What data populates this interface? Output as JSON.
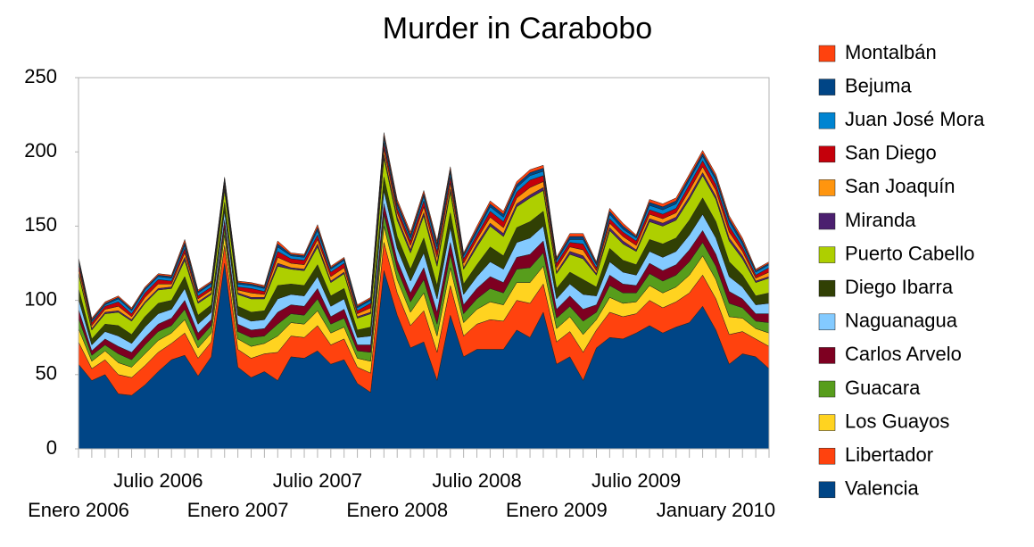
{
  "chart_data": {
    "type": "stacked_area",
    "title": "Murder in Carabobo",
    "categories": [
      "Enero 2006",
      null,
      null,
      null,
      null,
      null,
      "Julio 2006",
      null,
      null,
      null,
      null,
      null,
      "Enero 2007",
      null,
      null,
      null,
      null,
      null,
      "Julio 2007",
      null,
      null,
      null,
      null,
      null,
      "Enero 2008",
      null,
      null,
      null,
      null,
      null,
      "Julio 2008",
      null,
      null,
      null,
      null,
      null,
      "Enero 2009",
      null,
      null,
      null,
      null,
      null,
      "Julio 2009",
      null,
      null,
      null,
      null,
      null,
      "January 2010",
      null,
      null,
      null,
      null
    ],
    "ylim": [
      0,
      250
    ],
    "yticks": [
      0,
      50,
      100,
      150,
      200,
      250
    ],
    "grid": false,
    "series": [
      {
        "name": "Valencia",
        "color": "#004586",
        "values": [
          57,
          46,
          50,
          37,
          36,
          43,
          52,
          60,
          63,
          49,
          62,
          125,
          55,
          48,
          52,
          46,
          62,
          61,
          66,
          57,
          60,
          44,
          38,
          120,
          90,
          68,
          72,
          46,
          90,
          62,
          67,
          67,
          67,
          80,
          75,
          92,
          57,
          62,
          46,
          68,
          75,
          74,
          78,
          83,
          78,
          82,
          85,
          96,
          80,
          57,
          64,
          62,
          54
        ]
      },
      {
        "name": "Libertador",
        "color": "#ff420e",
        "values": [
          15,
          8,
          10,
          13,
          12,
          13,
          13,
          11,
          15,
          12,
          10,
          12,
          12,
          13,
          12,
          19,
          14,
          14,
          17,
          13,
          14,
          11,
          13,
          19,
          15,
          15,
          21,
          19,
          20,
          14,
          17,
          20,
          19,
          20,
          23,
          19,
          15,
          17,
          19,
          12,
          17,
          15,
          13,
          17,
          17,
          17,
          20,
          21,
          21,
          20,
          15,
          12,
          15
        ]
      },
      {
        "name": "Los Guayos",
        "color": "#ffd320",
        "values": [
          9,
          5,
          6,
          8,
          7,
          8,
          8,
          7,
          9,
          7,
          6,
          7,
          7,
          8,
          7,
          11,
          9,
          9,
          10,
          8,
          8,
          6,
          8,
          11,
          9,
          9,
          12,
          11,
          12,
          9,
          10,
          12,
          11,
          12,
          14,
          12,
          9,
          10,
          12,
          7,
          10,
          9,
          8,
          10,
          10,
          10,
          12,
          13,
          13,
          12,
          9,
          7,
          9
        ]
      },
      {
        "name": "Guacara",
        "color": "#579d1c",
        "values": [
          7,
          4,
          4,
          6,
          5,
          6,
          6,
          5,
          7,
          5,
          5,
          5,
          5,
          6,
          5,
          8,
          6,
          6,
          8,
          6,
          6,
          5,
          6,
          8,
          7,
          7,
          9,
          8,
          9,
          6,
          7,
          9,
          8,
          9,
          10,
          9,
          7,
          7,
          9,
          5,
          8,
          7,
          6,
          8,
          8,
          8,
          9,
          9,
          9,
          9,
          7,
          5,
          7
        ]
      },
      {
        "name": "Carlos Arvelo",
        "color": "#7e0021",
        "values": [
          6,
          3,
          4,
          5,
          5,
          5,
          5,
          5,
          6,
          5,
          4,
          5,
          5,
          5,
          5,
          8,
          6,
          6,
          7,
          5,
          6,
          4,
          5,
          7,
          6,
          6,
          8,
          8,
          8,
          6,
          7,
          8,
          7,
          8,
          9,
          8,
          6,
          7,
          8,
          5,
          7,
          6,
          5,
          7,
          7,
          7,
          8,
          8,
          8,
          8,
          6,
          5,
          6
        ]
      },
      {
        "name": "Naguanagua",
        "color": "#83caff",
        "values": [
          7,
          4,
          5,
          7,
          6,
          7,
          7,
          6,
          8,
          6,
          5,
          6,
          6,
          6,
          6,
          9,
          7,
          7,
          8,
          7,
          7,
          5,
          6,
          9,
          8,
          8,
          10,
          9,
          10,
          7,
          8,
          10,
          9,
          10,
          11,
          10,
          7,
          8,
          10,
          6,
          9,
          8,
          7,
          8,
          9,
          9,
          10,
          11,
          11,
          10,
          8,
          6,
          7
        ]
      },
      {
        "name": "Diego Ibarra",
        "color": "#314004",
        "values": [
          7,
          4,
          5,
          7,
          6,
          7,
          7,
          6,
          8,
          6,
          5,
          6,
          6,
          6,
          6,
          9,
          7,
          7,
          8,
          7,
          7,
          5,
          6,
          9,
          8,
          8,
          10,
          9,
          10,
          7,
          8,
          10,
          9,
          10,
          11,
          10,
          7,
          8,
          10,
          6,
          9,
          8,
          7,
          8,
          9,
          9,
          10,
          11,
          11,
          10,
          8,
          6,
          7
        ]
      },
      {
        "name": "Puerto Cabello",
        "color": "#aecf00",
        "values": [
          10,
          6,
          7,
          9,
          9,
          9,
          9,
          8,
          11,
          8,
          7,
          8,
          8,
          9,
          8,
          13,
          10,
          10,
          12,
          9,
          10,
          8,
          9,
          13,
          11,
          11,
          15,
          13,
          14,
          10,
          12,
          14,
          13,
          14,
          16,
          14,
          10,
          12,
          14,
          8,
          12,
          11,
          9,
          12,
          12,
          12,
          14,
          15,
          15,
          14,
          11,
          9,
          10
        ]
      },
      {
        "name": "Miranda",
        "color": "#4b1f6f",
        "values": [
          1,
          1,
          1,
          1,
          1,
          1,
          1,
          1,
          2,
          1,
          1,
          1,
          1,
          1,
          1,
          2,
          1,
          1,
          2,
          1,
          1,
          1,
          1,
          2,
          2,
          2,
          2,
          2,
          2,
          1,
          2,
          2,
          2,
          2,
          2,
          2,
          1,
          2,
          2,
          1,
          2,
          2,
          1,
          2,
          2,
          2,
          2,
          2,
          2,
          2,
          2,
          1,
          1
        ]
      },
      {
        "name": "San Joaquín",
        "color": "#ff950e",
        "values": [
          3,
          2,
          2,
          3,
          2,
          3,
          3,
          2,
          3,
          2,
          2,
          2,
          2,
          3,
          2,
          4,
          3,
          3,
          3,
          3,
          3,
          2,
          3,
          4,
          3,
          3,
          4,
          4,
          4,
          3,
          3,
          4,
          4,
          4,
          5,
          4,
          3,
          3,
          4,
          2,
          3,
          3,
          3,
          3,
          3,
          3,
          4,
          4,
          4,
          4,
          3,
          2,
          3
        ]
      },
      {
        "name": "San Diego",
        "color": "#c5000b",
        "values": [
          3,
          2,
          2,
          3,
          2,
          3,
          3,
          2,
          3,
          2,
          2,
          2,
          2,
          3,
          2,
          4,
          3,
          3,
          3,
          3,
          3,
          2,
          3,
          4,
          3,
          3,
          4,
          4,
          4,
          3,
          3,
          4,
          4,
          4,
          5,
          4,
          3,
          3,
          4,
          2,
          3,
          3,
          3,
          3,
          3,
          3,
          4,
          4,
          4,
          4,
          3,
          2,
          3
        ]
      },
      {
        "name": "Juan José Mora",
        "color": "#0084d1",
        "values": [
          2,
          1,
          1,
          2,
          2,
          2,
          2,
          2,
          2,
          2,
          2,
          2,
          2,
          2,
          2,
          3,
          2,
          2,
          3,
          2,
          2,
          2,
          2,
          3,
          2,
          2,
          3,
          3,
          3,
          2,
          2,
          3,
          3,
          3,
          3,
          3,
          2,
          2,
          3,
          2,
          3,
          2,
          2,
          3,
          3,
          3,
          3,
          3,
          3,
          3,
          2,
          2,
          2
        ]
      },
      {
        "name": "Bejuma",
        "color": "#004586",
        "values": [
          1,
          1,
          1,
          1,
          1,
          1,
          1,
          1,
          2,
          1,
          1,
          1,
          1,
          1,
          1,
          2,
          1,
          1,
          2,
          1,
          1,
          1,
          1,
          2,
          2,
          2,
          2,
          2,
          2,
          1,
          2,
          2,
          2,
          2,
          2,
          2,
          1,
          2,
          2,
          1,
          2,
          2,
          1,
          2,
          2,
          2,
          2,
          2,
          2,
          2,
          2,
          1,
          1
        ]
      },
      {
        "name": "Montalbán",
        "color": "#ff420e",
        "values": [
          1,
          1,
          1,
          1,
          1,
          1,
          1,
          1,
          2,
          1,
          1,
          1,
          1,
          1,
          1,
          2,
          1,
          1,
          2,
          1,
          1,
          1,
          1,
          2,
          2,
          2,
          2,
          2,
          2,
          1,
          2,
          2,
          2,
          2,
          2,
          2,
          1,
          2,
          2,
          1,
          2,
          2,
          1,
          2,
          2,
          2,
          2,
          2,
          2,
          2,
          2,
          1,
          1
        ]
      }
    ]
  }
}
